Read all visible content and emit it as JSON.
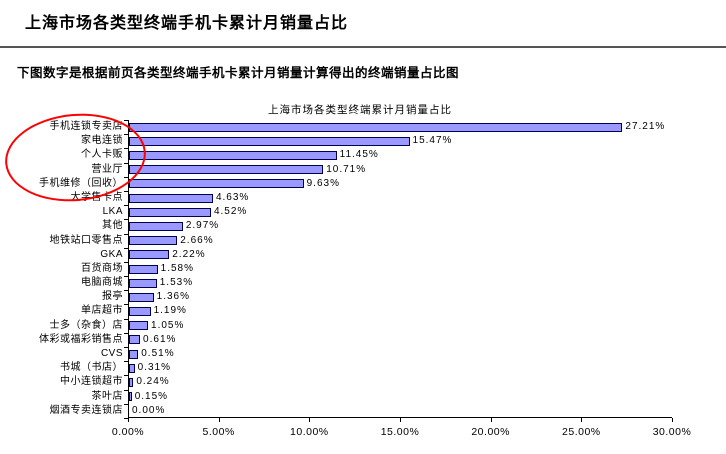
{
  "page": {
    "title": "上海市场各类型终端手机卡累计月销量占比",
    "subtitle": "下图数字是根据前页各类型终端手机卡累计月销量计算得出的终端销量占比图"
  },
  "chart_data": {
    "type": "bar",
    "orientation": "horizontal",
    "title": "上海市场各类型终端累计月销量占比",
    "categories": [
      "手机连锁专卖店",
      "家电连锁",
      "个人卡贩",
      "营业厅",
      "手机维修（回收）",
      "大学售卡点",
      "LKA",
      "其他",
      "地铁站口零售点",
      "GKA",
      "百货商场",
      "电脑商城",
      "报亭",
      "单店超市",
      "士多（杂食）店",
      "体彩或福彩销售点",
      "CVS",
      "书城（书店）",
      "中小连锁超市",
      "茶叶店",
      "烟酒专卖连锁店"
    ],
    "values": [
      27.21,
      15.47,
      11.45,
      10.71,
      9.63,
      4.63,
      4.52,
      2.97,
      2.66,
      2.22,
      1.58,
      1.53,
      1.36,
      1.19,
      1.05,
      0.61,
      0.51,
      0.31,
      0.24,
      0.15,
      0.0
    ],
    "value_labels": [
      "27.21%",
      "15.47%",
      "11.45%",
      "10.71%",
      "9.63%",
      "4.63%",
      "4.52%",
      "2.97%",
      "2.66%",
      "2.22%",
      "1.58%",
      "1.53%",
      "1.36%",
      "1.19%",
      "1.05%",
      "0.61%",
      "0.51%",
      "0.31%",
      "0.24%",
      "0.15%",
      "0.00%"
    ],
    "xlabel": "",
    "ylabel": "",
    "xlim": [
      0,
      30
    ],
    "x_ticks": [
      "0.00%",
      "5.00%",
      "10.00%",
      "15.00%",
      "20.00%",
      "25.00%",
      "30.00%"
    ],
    "grid": false,
    "legend": "none",
    "bar_fill": "#9999FF",
    "bar_border": "#000050"
  },
  "annotation": {
    "shape": "ellipse",
    "color": "#FF0000",
    "circled_categories": [
      "手机连锁专卖店",
      "家电连锁",
      "个人卡贩",
      "营业厅",
      "手机维修（回收）"
    ]
  }
}
